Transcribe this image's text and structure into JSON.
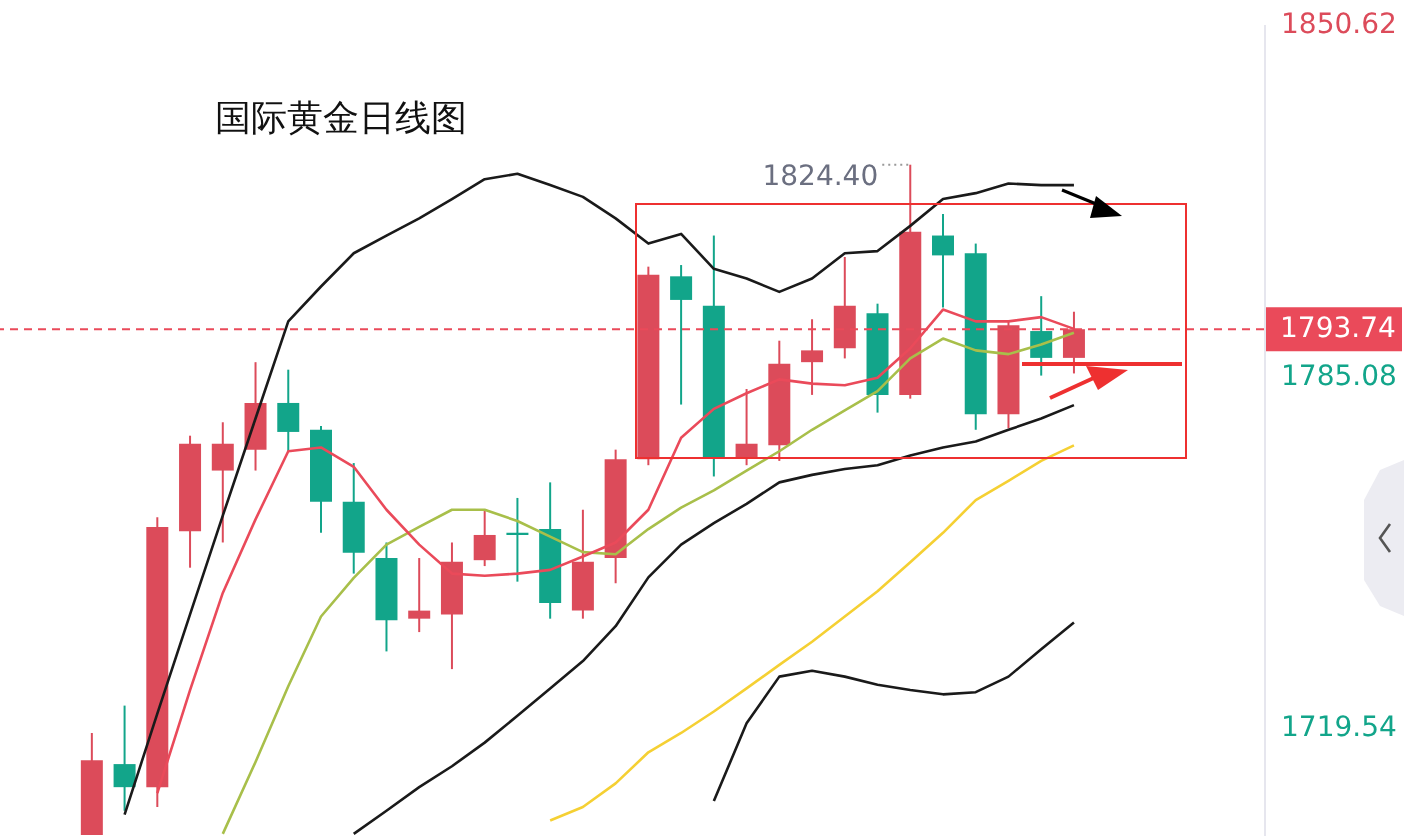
{
  "chart_data": {
    "type": "candlestick",
    "title": "国际黄金日线图",
    "categories": [
      null,
      null,
      null,
      null,
      null,
      null,
      null,
      null,
      null,
      null,
      null,
      null,
      null,
      null,
      null,
      null,
      null,
      null,
      null,
      null,
      null,
      null,
      null,
      null,
      null,
      null,
      null,
      null,
      null,
      null,
      null,
      null,
      null,
      null,
      null,
      null,
      null,
      null
    ],
    "ohlc": [
      null,
      null,
      [
        1699.5,
        1718.5,
        1699.5,
        1713.4
      ],
      [
        1712.7,
        1723.6,
        1704.0,
        1708.4
      ],
      [
        1708.4,
        1758.7,
        1704.7,
        1756.9
      ],
      [
        1756.1,
        1773.9,
        1749.3,
        1772.4
      ],
      [
        1767.4,
        1776.4,
        1754.0,
        1772.4
      ],
      [
        1771.3,
        1787.6,
        1767.4,
        1780.0
      ],
      [
        1780.0,
        1786.2,
        1771.0,
        1774.6
      ],
      [
        1775.0,
        1775.7,
        1755.8,
        1761.6
      ],
      [
        1761.6,
        1768.8,
        1748.2,
        1752.1
      ],
      [
        1751.1,
        1754.0,
        1733.7,
        1739.5
      ],
      [
        1739.8,
        1751.1,
        1737.3,
        1741.3
      ],
      [
        1740.6,
        1754.0,
        1730.4,
        1750.4
      ],
      [
        1750.7,
        1760.1,
        1749.6,
        1755.4
      ],
      [
        1755.8,
        1762.3,
        1746.7,
        1755.4
      ],
      [
        1756.5,
        1765.2,
        1739.8,
        1742.7
      ],
      [
        1741.3,
        1760.1,
        1739.8,
        1750.4
      ],
      [
        1751.1,
        1771.3,
        1746.4,
        1769.5
      ],
      [
        1769.5,
        1805.4,
        1768.4,
        1803.9
      ],
      [
        1803.6,
        1805.7,
        1779.7,
        1799.2
      ],
      [
        1798.1,
        1811.2,
        1766.3,
        1769.9
      ],
      [
        1769.9,
        1782.6,
        1768.4,
        1772.4
      ],
      [
        1772.1,
        1791.6,
        1769.2,
        1787.3
      ],
      [
        1787.6,
        1795.6,
        1781.5,
        1789.8
      ],
      [
        1790.2,
        1807.2,
        1788.3,
        1798.1
      ],
      [
        1796.7,
        1798.5,
        1778.2,
        1781.5
      ],
      [
        1781.5,
        1824.4,
        1780.8,
        1811.9
      ],
      [
        1811.2,
        1815.2,
        1797.8,
        1807.5
      ],
      [
        1807.9,
        1809.7,
        1775.0,
        1777.9
      ],
      [
        1777.9,
        1795.2,
        1775.3,
        1794.5
      ],
      [
        1793.4,
        1799.9,
        1785.1,
        1788.4
      ],
      [
        1788.4,
        1797.0,
        1785.5,
        1793.74
      ],
      null,
      null,
      null,
      null,
      null
    ],
    "colors": [
      null,
      null,
      "#dc4b5a",
      "#12a58a",
      "#dc4b5a",
      "#dc4b5a",
      "#dc4b5a",
      "#dc4b5a",
      "#12a58a",
      "#12a58a",
      "#12a58a",
      "#12a58a",
      "#dc4b5a",
      "#dc4b5a",
      "#dc4b5a",
      "#12a58a",
      "#12a58a",
      "#dc4b5a",
      "#dc4b5a",
      "#dc4b5a",
      "#12a58a",
      "#12a58a",
      "#dc4b5a",
      "#dc4b5a",
      "#dc4b5a",
      "#dc4b5a",
      "#12a58a",
      "#dc4b5a",
      "#12a58a",
      "#12a58a",
      "#dc4b5a",
      "#12a58a",
      "#dc4b5a",
      null,
      null,
      null,
      null,
      null
    ],
    "series": [
      {
        "type": "line",
        "color": "#1a1a1a",
        "values": [
          null,
          null,
          null,
          1703.3,
          1722.1,
          1740.6,
          1759.0,
          1777.1,
          1795.2,
          1801.7,
          1807.9,
          1811.2,
          1814.4,
          1818.0,
          1821.7,
          1822.7,
          1820.6,
          1818.4,
          1814.4,
          1809.7,
          1811.5,
          1805.0,
          1803.2,
          1800.7,
          1803.2,
          1807.9,
          1808.3,
          1813.0,
          1818.0,
          1819.1,
          1820.9,
          1820.6,
          1820.6,
          null,
          null,
          null,
          null,
          null
        ]
      },
      {
        "type": "line",
        "color": "#1a1a1a",
        "values": [
          null,
          null,
          null,
          null,
          null,
          null,
          null,
          null,
          null,
          null,
          1699.7,
          1704.0,
          1708.4,
          1712.3,
          1716.7,
          1721.7,
          1726.8,
          1731.9,
          1738.4,
          1747.5,
          1753.6,
          1757.6,
          1761.2,
          1765.2,
          1766.6,
          1767.7,
          1768.4,
          1770.2,
          1771.7,
          1772.8,
          1775.0,
          1777.1,
          1779.6,
          null,
          null,
          null,
          null,
          null
        ]
      },
      {
        "type": "line",
        "color": "#1a1a1a",
        "values": [
          null,
          null,
          null,
          null,
          null,
          null,
          null,
          null,
          null,
          null,
          null,
          null,
          null,
          null,
          null,
          null,
          null,
          null,
          null,
          null,
          null,
          1705.8,
          1720.3,
          1729.0,
          1730.1,
          1729.0,
          1727.5,
          1726.5,
          1725.7,
          1726.1,
          1729.0,
          1734.1,
          1739.1,
          null,
          null,
          null,
          null,
          null
        ]
      },
      {
        "type": "line",
        "color": "#f5d033",
        "values": [
          null,
          null,
          null,
          null,
          null,
          null,
          null,
          null,
          null,
          null,
          null,
          null,
          null,
          null,
          null,
          null,
          1702.2,
          1704.7,
          1709.1,
          1714.9,
          1718.5,
          1722.5,
          1726.8,
          1731.2,
          1735.5,
          1740.2,
          1744.9,
          1750.3,
          1755.8,
          1761.9,
          1765.5,
          1769.2,
          1772.1,
          null,
          null,
          null,
          null,
          null
        ]
      },
      {
        "type": "line",
        "color": "#a8bf4a",
        "values": [
          null,
          null,
          null,
          null,
          null,
          null,
          1699.7,
          1713.1,
          1727.2,
          1740.2,
          1747.4,
          1753.6,
          1756.9,
          1760.1,
          1760.1,
          1758.0,
          1755.1,
          1752.2,
          1751.8,
          1756.5,
          1760.5,
          1763.7,
          1767.4,
          1771.0,
          1775.0,
          1778.6,
          1782.2,
          1788.3,
          1792.0,
          1789.8,
          1789.1,
          1790.9,
          1793.1,
          null,
          null,
          null,
          null,
          null
        ]
      },
      {
        "type": "line",
        "color": "#ea4a5a",
        "values": [
          null,
          null,
          null,
          null,
          1707.3,
          1726.5,
          1744.6,
          1758.3,
          1771.0,
          1771.7,
          1768.1,
          1760.1,
          1753.6,
          1748.2,
          1747.8,
          1748.2,
          1748.9,
          1751.4,
          1754.0,
          1760.1,
          1773.5,
          1778.9,
          1781.8,
          1784.4,
          1783.6,
          1783.3,
          1784.7,
          1790.2,
          1797.4,
          1795.2,
          1795.2,
          1796.0,
          1793.8,
          null,
          null,
          null,
          null,
          null
        ]
      }
    ],
    "ylim": [
      1699.3,
      1850.62
    ],
    "yticks": [
      1719.54,
      1785.08,
      1850.62
    ],
    "ref_lines": [
      {
        "axis": "y",
        "value": 1793.74,
        "label": "1793.74",
        "color": "#ea4a5a",
        "line_style": "dashed"
      }
    ],
    "annotations": [
      "1824.40"
    ]
  }
}
